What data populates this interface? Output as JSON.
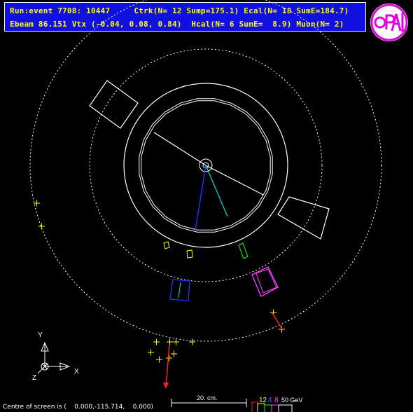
{
  "header": {
    "line1": "Run:event 7708: 10447     Ctrk(N= 12 Sump=175.1) Ecal(N= 18 SumE=184.7)",
    "line2": "Ebeam 86.151 Vtx (-0.04, 0.08, 0.84)  Hcal(N= 6 SumE=  8.9) Muon(N= 2)"
  },
  "logo": {
    "text": "OPAL",
    "color": "#e000e0"
  },
  "axes": {
    "y_label": "Y",
    "x_label": "X",
    "z_label": "Z"
  },
  "scale": {
    "label": "20. cm."
  },
  "energy_legend": {
    "labels": [
      "12",
      "4",
      "8",
      "50 GeV"
    ],
    "colors": [
      "#ffff00",
      "#00ff00",
      "#ff40ff",
      "#ffffff"
    ]
  },
  "footer": {
    "centre_text": "Centre of screen is (    0.000,-115.714,    0.000)"
  },
  "colors": {
    "background": "#000000",
    "header_bg": "#1010e0",
    "header_text": "#ffff00",
    "track_blue": "#2030ff",
    "track_cyan": "#00e0e0",
    "muon_red": "#ff2020",
    "ecal": "#ffff00",
    "hcal": "#ff40ff"
  }
}
